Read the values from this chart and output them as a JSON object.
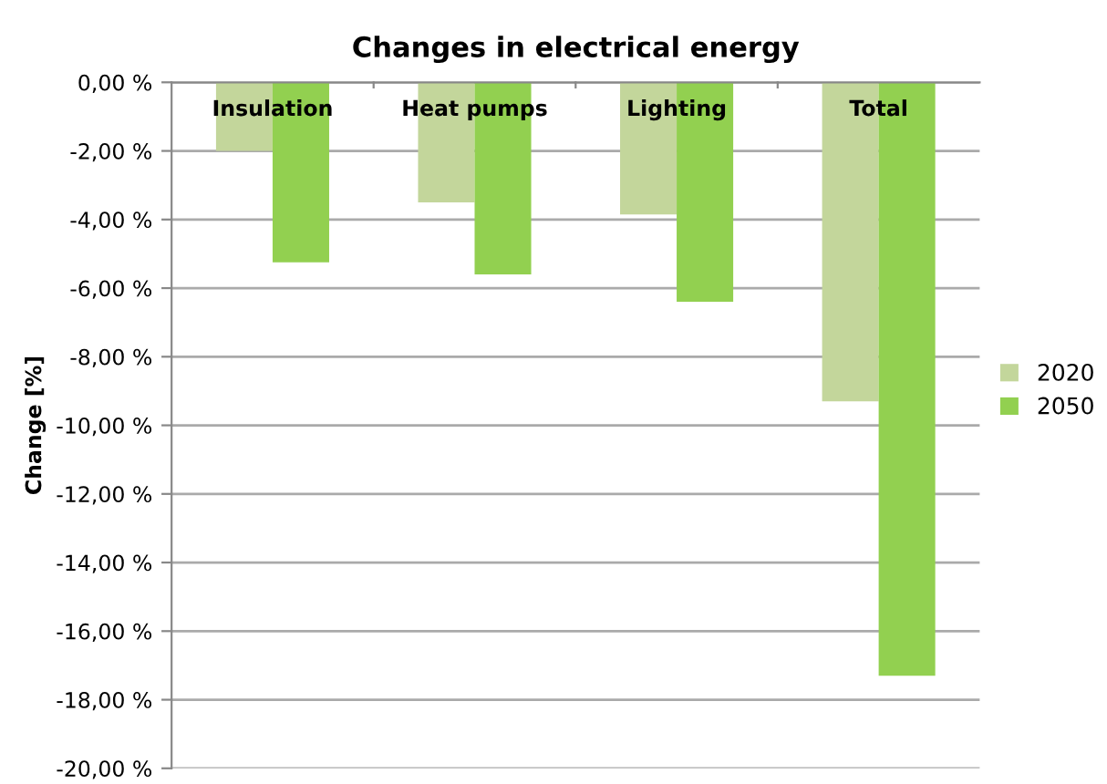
{
  "chart_data": {
    "type": "bar",
    "title": "Changes in electrical energy",
    "ylabel": "Change [%]",
    "categories": [
      "Insulation",
      "Heat pumps",
      "Lighting",
      "Total"
    ],
    "series": [
      {
        "name": "2020",
        "color": "#c3d69b",
        "values": [
          -2.0,
          -3.5,
          -3.85,
          -9.3
        ]
      },
      {
        "name": "2050",
        "color": "#92d050",
        "values": [
          -5.25,
          -5.6,
          -6.4,
          -17.3
        ]
      }
    ],
    "ylim": [
      -20,
      0
    ],
    "yticks": [
      {
        "value": 0,
        "label": "0,00 %"
      },
      {
        "value": -2,
        "label": "-2,00 %"
      },
      {
        "value": -4,
        "label": "-4,00 %"
      },
      {
        "value": -6,
        "label": "-6,00 %"
      },
      {
        "value": -8,
        "label": "-8,00 %"
      },
      {
        "value": -10,
        "label": "-10,00 %"
      },
      {
        "value": -12,
        "label": "-12,00 %"
      },
      {
        "value": -14,
        "label": "-14,00 %"
      },
      {
        "value": -16,
        "label": "-16,00 %"
      },
      {
        "value": -18,
        "label": "-18,00 %"
      },
      {
        "value": -20,
        "label": "-20,00 %"
      }
    ],
    "grid": "y",
    "legend": "right"
  }
}
